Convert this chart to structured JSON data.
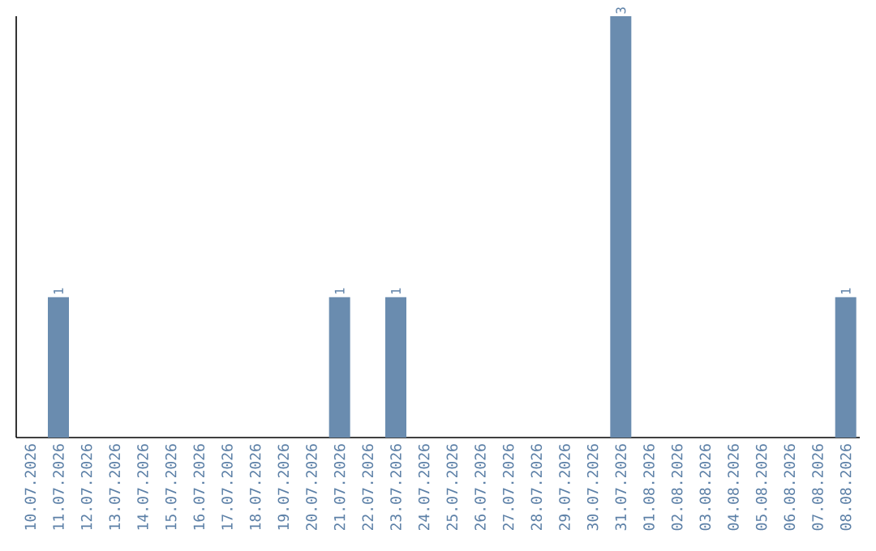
{
  "chart_data": {
    "type": "bar",
    "categories": [
      "10.07.2026",
      "11.07.2026",
      "12.07.2026",
      "13.07.2026",
      "14.07.2026",
      "15.07.2026",
      "16.07.2026",
      "17.07.2026",
      "18.07.2026",
      "19.07.2026",
      "20.07.2026",
      "21.07.2026",
      "22.07.2026",
      "23.07.2026",
      "24.07.2026",
      "25.07.2026",
      "26.07.2026",
      "27.07.2026",
      "28.07.2026",
      "29.07.2026",
      "30.07.2026",
      "31.07.2026",
      "01.08.2026",
      "02.08.2026",
      "03.08.2026",
      "04.08.2026",
      "05.08.2026",
      "06.08.2026",
      "07.08.2026",
      "08.08.2026"
    ],
    "values": [
      0,
      1,
      0,
      0,
      0,
      0,
      0,
      0,
      0,
      0,
      0,
      1,
      0,
      1,
      0,
      0,
      0,
      0,
      0,
      0,
      0,
      3,
      0,
      0,
      0,
      0,
      0,
      0,
      0,
      1
    ],
    "color": "#6a8caf",
    "value_labels": [
      null,
      "1",
      null,
      null,
      null,
      null,
      null,
      null,
      null,
      null,
      null,
      "1",
      null,
      "1",
      null,
      null,
      null,
      null,
      null,
      null,
      null,
      "3",
      null,
      null,
      null,
      null,
      null,
      null,
      null,
      "1"
    ]
  }
}
